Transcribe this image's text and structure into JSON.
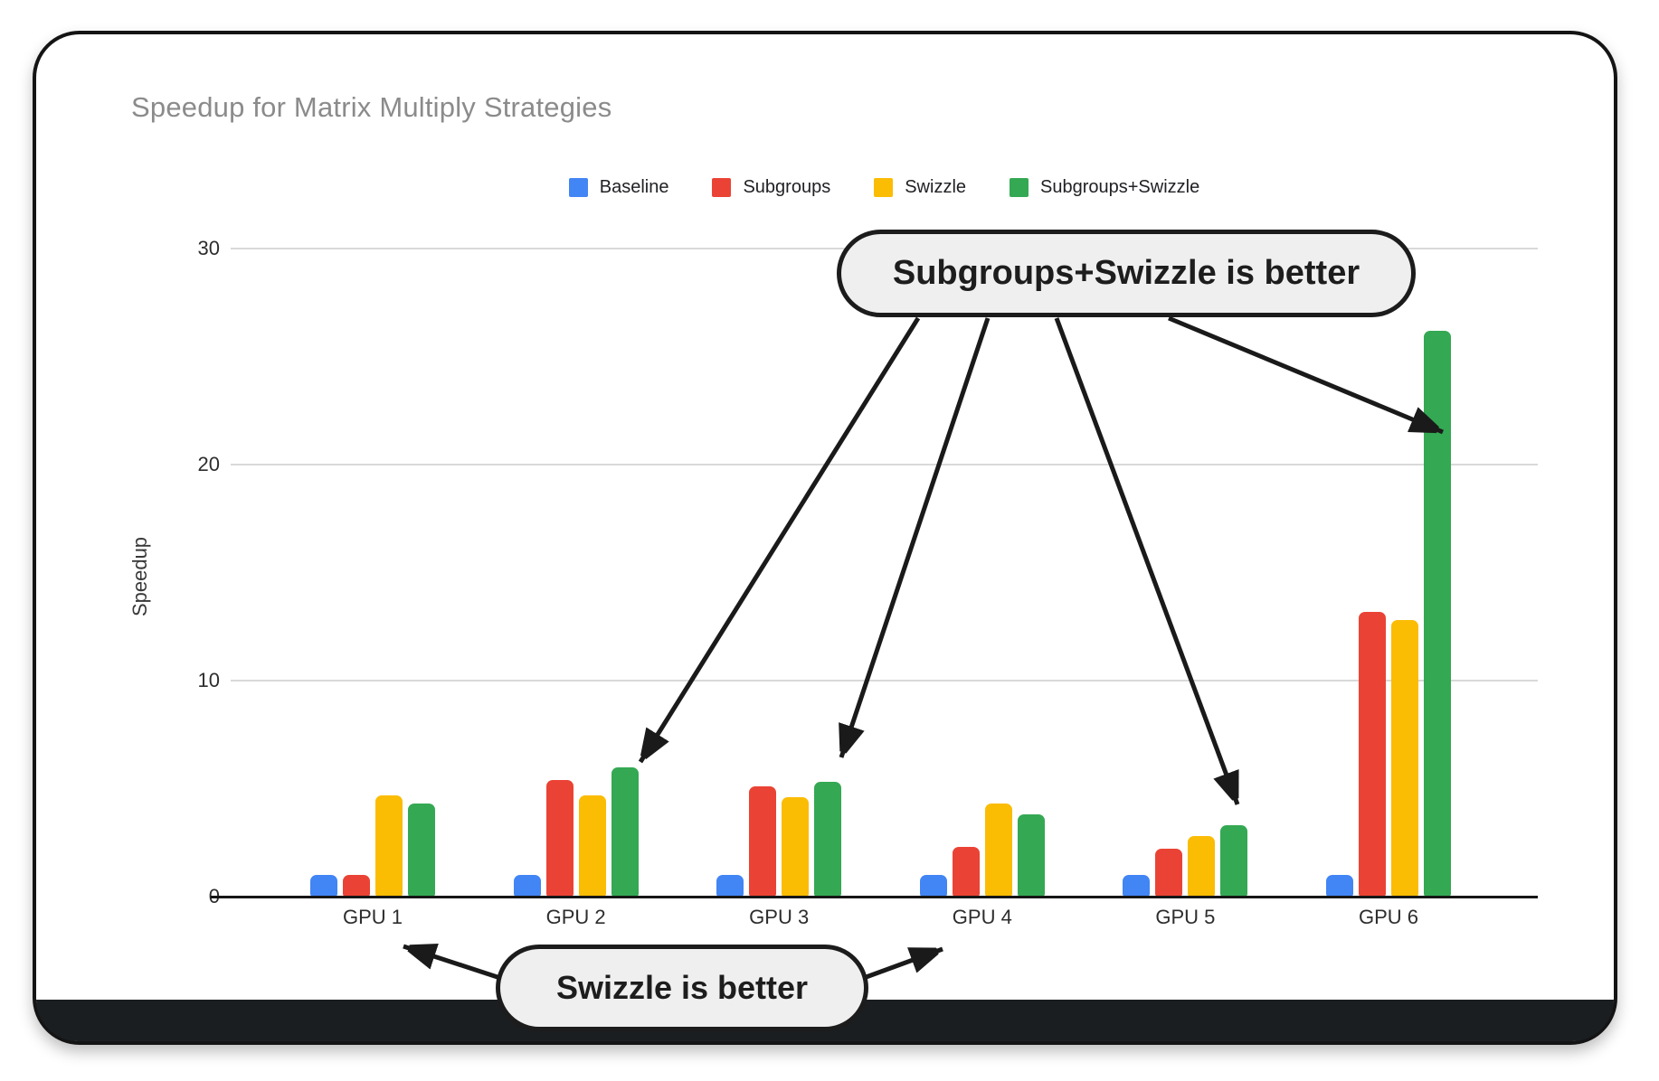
{
  "chart_data": {
    "type": "bar",
    "title": "Speedup for Matrix Multiply Strategies",
    "xlabel": "",
    "ylabel": "Speedup",
    "categories": [
      "GPU 1",
      "GPU 2",
      "GPU 3",
      "GPU 4",
      "GPU 5",
      "GPU 6"
    ],
    "series": [
      {
        "name": "Baseline",
        "color": "#4285F4",
        "values": [
          1.0,
          1.0,
          1.0,
          1.0,
          1.0,
          1.0
        ]
      },
      {
        "name": "Subgroups",
        "color": "#EA4335",
        "values": [
          1.0,
          5.4,
          5.1,
          2.3,
          2.2,
          13.2
        ]
      },
      {
        "name": "Swizzle",
        "color": "#FBBC04",
        "values": [
          4.7,
          4.7,
          4.6,
          4.3,
          2.8,
          12.8
        ]
      },
      {
        "name": "Subgroups+Swizzle",
        "color": "#34A853",
        "values": [
          4.3,
          6.0,
          5.3,
          3.8,
          3.3,
          26.2
        ]
      }
    ],
    "ylim": [
      0,
      30
    ],
    "yticks": [
      0,
      10,
      20,
      30
    ],
    "grid": true,
    "legend_position": "top"
  },
  "annotations": {
    "top_callout": {
      "text": "Subgroups+Swizzle is better"
    },
    "bottom_callout": {
      "text": "Swizzle is better"
    }
  },
  "colors": {
    "grid": "#d9d9d9",
    "axis": "#161616",
    "title_text": "#8b8b8b",
    "callout_fill": "#efefef",
    "callout_border": "#1c1c1c",
    "arrow": "#1a1a1a"
  }
}
